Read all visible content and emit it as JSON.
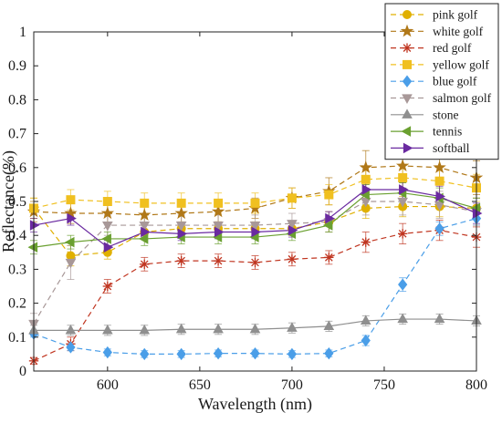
{
  "chart_data": {
    "type": "line",
    "xlabel": "Wavelength (nm)",
    "ylabel": "Reflectance(%)",
    "xlim": [
      560,
      800
    ],
    "ylim": [
      0,
      1
    ],
    "x_ticks": [
      600,
      650,
      700,
      750,
      800
    ],
    "y_ticks": [
      0,
      0.1,
      0.2,
      0.3,
      0.4,
      0.5,
      0.6,
      0.7,
      0.8,
      0.9,
      1
    ],
    "grid": false,
    "legend_position": "top-right",
    "x": [
      560,
      580,
      600,
      620,
      640,
      660,
      680,
      700,
      720,
      740,
      760,
      780,
      800
    ],
    "series": [
      {
        "name": "pink golf",
        "color": "#e0b000",
        "marker": "circle",
        "dash": "dashed",
        "values": [
          0.48,
          0.34,
          0.35,
          0.41,
          0.42,
          0.42,
          0.42,
          0.42,
          0.44,
          0.48,
          0.485,
          0.485,
          0.48
        ],
        "errors": [
          0.03,
          0.03,
          0.02,
          0.02,
          0.02,
          0.02,
          0.02,
          0.02,
          0.03,
          0.03,
          0.03,
          0.03,
          0.03
        ]
      },
      {
        "name": "white golf",
        "color": "#b07818",
        "marker": "star",
        "dash": "dashed",
        "values": [
          0.47,
          0.465,
          0.465,
          0.46,
          0.465,
          0.47,
          0.48,
          0.51,
          0.53,
          0.6,
          0.605,
          0.6,
          0.57
        ],
        "errors": [
          0.03,
          0.03,
          0.03,
          0.03,
          0.03,
          0.03,
          0.03,
          0.03,
          0.04,
          0.05,
          0.05,
          0.05,
          0.05
        ]
      },
      {
        "name": "red golf",
        "color": "#c03520",
        "marker": "asterisk",
        "dash": "dashed",
        "values": [
          0.03,
          0.08,
          0.25,
          0.315,
          0.325,
          0.325,
          0.32,
          0.33,
          0.335,
          0.38,
          0.405,
          0.415,
          0.395
        ],
        "errors": [
          0.01,
          0.02,
          0.02,
          0.02,
          0.02,
          0.02,
          0.02,
          0.02,
          0.02,
          0.03,
          0.03,
          0.03,
          0.03
        ]
      },
      {
        "name": "yellow golf",
        "color": "#f0c020",
        "marker": "square",
        "dash": "dashed",
        "values": [
          0.48,
          0.505,
          0.5,
          0.495,
          0.495,
          0.495,
          0.495,
          0.51,
          0.52,
          0.565,
          0.57,
          0.56,
          0.54
        ],
        "errors": [
          0.03,
          0.03,
          0.03,
          0.03,
          0.03,
          0.03,
          0.03,
          0.03,
          0.03,
          0.04,
          0.04,
          0.04,
          0.04
        ]
      },
      {
        "name": "blue golf",
        "color": "#4a9ee8",
        "marker": "diamond",
        "dash": "dashed",
        "values": [
          0.11,
          0.07,
          0.055,
          0.05,
          0.05,
          0.052,
          0.052,
          0.05,
          0.052,
          0.09,
          0.255,
          0.42,
          0.45
        ],
        "errors": [
          0.01,
          0.01,
          0.01,
          0.01,
          0.01,
          0.01,
          0.01,
          0.01,
          0.01,
          0.015,
          0.02,
          0.02,
          0.02
        ]
      },
      {
        "name": "salmon golf",
        "color": "#a89898",
        "marker": "triangle-down",
        "dash": "dashed",
        "values": [
          0.14,
          0.32,
          0.43,
          0.43,
          0.43,
          0.43,
          0.43,
          0.435,
          0.44,
          0.5,
          0.5,
          0.49,
          0.47
        ],
        "errors": [
          0.03,
          0.05,
          0.03,
          0.03,
          0.03,
          0.03,
          0.03,
          0.03,
          0.03,
          0.04,
          0.04,
          0.04,
          0.04
        ]
      },
      {
        "name": "stone",
        "color": "#8f8f8f",
        "marker": "triangle-up",
        "dash": "solid",
        "values": [
          0.12,
          0.12,
          0.12,
          0.12,
          0.123,
          0.123,
          0.123,
          0.127,
          0.132,
          0.148,
          0.153,
          0.153,
          0.148
        ],
        "errors": [
          0.015,
          0.015,
          0.015,
          0.015,
          0.015,
          0.015,
          0.015,
          0.015,
          0.015,
          0.015,
          0.015,
          0.015,
          0.015
        ]
      },
      {
        "name": "tennis",
        "color": "#6aa030",
        "marker": "triangle-left",
        "dash": "solid",
        "values": [
          0.365,
          0.38,
          0.39,
          0.39,
          0.395,
          0.395,
          0.395,
          0.405,
          0.43,
          0.52,
          0.525,
          0.51,
          0.48
        ],
        "errors": [
          0.02,
          0.02,
          0.02,
          0.02,
          0.02,
          0.02,
          0.02,
          0.02,
          0.02,
          0.03,
          0.03,
          0.03,
          0.03
        ]
      },
      {
        "name": "softball",
        "color": "#6a2aa0",
        "marker": "triangle-right",
        "dash": "solid",
        "values": [
          0.43,
          0.45,
          0.365,
          0.41,
          0.405,
          0.41,
          0.41,
          0.415,
          0.45,
          0.535,
          0.535,
          0.515,
          0.465
        ],
        "errors": [
          0.02,
          0.02,
          0.02,
          0.02,
          0.02,
          0.02,
          0.02,
          0.02,
          0.02,
          0.03,
          0.03,
          0.03,
          0.03
        ]
      }
    ]
  }
}
